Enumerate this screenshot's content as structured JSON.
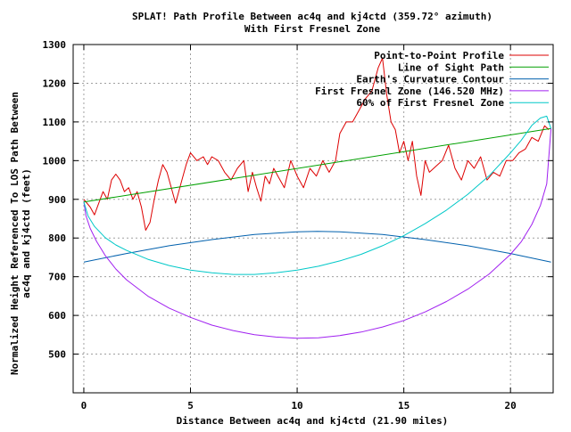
{
  "chart_data": {
    "type": "line",
    "title": "SPLAT! Path Profile Between ac4q and kj4ctd (359.72° azimuth)",
    "subtitle": "With First Fresnel Zone",
    "xlabel": "Distance Between ac4q and kj4ctd (21.90 miles)",
    "ylabel_lines": [
      "Normalized Height Referenced To LOS Path Between",
      "ac4q and kj4ctd (feet)"
    ],
    "xlim": [
      -0.5,
      22
    ],
    "ylim": [
      400,
      1300
    ],
    "x_ticks": [
      "0",
      "5",
      "10",
      "15",
      "20"
    ],
    "y_ticks": [
      "500",
      "600",
      "700",
      "800",
      "900",
      "1000",
      "1100",
      "1200",
      "1300"
    ],
    "grid": true,
    "legend_position": "top-right",
    "series": [
      {
        "name": "Point-to-Point Profile",
        "color": "#dd0000",
        "x": [
          0,
          0.3,
          0.5,
          0.7,
          0.9,
          1.1,
          1.3,
          1.5,
          1.7,
          1.9,
          2.1,
          2.3,
          2.5,
          2.7,
          2.9,
          3.1,
          3.3,
          3.5,
          3.7,
          3.9,
          4.1,
          4.3,
          4.6,
          4.8,
          5.0,
          5.3,
          5.6,
          5.8,
          6.0,
          6.3,
          6.6,
          6.9,
          7.2,
          7.5,
          7.7,
          7.9,
          8.1,
          8.3,
          8.5,
          8.7,
          8.9,
          9.1,
          9.4,
          9.7,
          10.0,
          10.3,
          10.6,
          10.9,
          11.2,
          11.5,
          11.8,
          12.0,
          12.3,
          12.6,
          12.9,
          13.2,
          13.5,
          13.8,
          14.0,
          14.2,
          14.4,
          14.6,
          14.8,
          15.0,
          15.2,
          15.4,
          15.6,
          15.8,
          16.0,
          16.2,
          16.5,
          16.8,
          17.1,
          17.4,
          17.7,
          18.0,
          18.3,
          18.6,
          18.9,
          19.2,
          19.5,
          19.8,
          20.1,
          20.4,
          20.7,
          21.0,
          21.3,
          21.6,
          21.8
        ],
        "y": [
          900,
          880,
          860,
          890,
          920,
          900,
          950,
          965,
          950,
          920,
          930,
          900,
          920,
          880,
          820,
          840,
          900,
          950,
          990,
          970,
          930,
          890,
          950,
          990,
          1020,
          1000,
          1010,
          990,
          1010,
          1000,
          970,
          950,
          980,
          1000,
          920,
          970,
          930,
          895,
          960,
          940,
          980,
          960,
          930,
          1000,
          960,
          930,
          980,
          960,
          1000,
          970,
          1000,
          1070,
          1100,
          1100,
          1130,
          1160,
          1180,
          1240,
          1265,
          1170,
          1100,
          1080,
          1020,
          1050,
          1000,
          1050,
          960,
          910,
          1000,
          970,
          985,
          1000,
          1040,
          980,
          950,
          1000,
          980,
          1010,
          950,
          970,
          960,
          1000,
          1000,
          1020,
          1030,
          1060,
          1050,
          1090,
          1080
        ]
      },
      {
        "name": "Line of Sight Path",
        "color": "#00a000",
        "x": [
          0,
          21.9
        ],
        "y": [
          893,
          1083
        ]
      },
      {
        "name": "Earth's Curvature Contour",
        "color": "#0060ad",
        "x": [
          0,
          2,
          4,
          6,
          8,
          10,
          10.95,
          12,
          14,
          16,
          18,
          20,
          21.9
        ],
        "y": [
          738,
          760,
          780,
          796,
          809,
          816,
          817,
          816,
          809,
          796,
          780,
          760,
          738
        ]
      },
      {
        "name": "First Fresnel Zone (146.520 MHz)",
        "color": "#a020f0",
        "x": [
          0,
          0.1,
          0.3,
          0.6,
          1,
          1.5,
          2,
          3,
          4,
          5,
          6,
          7,
          8,
          9,
          10,
          11,
          12,
          13,
          14,
          15,
          16,
          17,
          18,
          19,
          20,
          20.5,
          21,
          21.4,
          21.7,
          21.9
        ],
        "y": [
          893,
          858,
          825,
          791,
          755,
          720,
          692,
          650,
          619,
          595,
          575,
          561,
          550,
          544,
          541,
          542,
          548,
          557,
          570,
          587,
          609,
          636,
          668,
          707,
          758,
          790,
          835,
          884,
          940,
          1083
        ]
      },
      {
        "name": "60% of First Fresnel Zone",
        "color": "#00c8c8",
        "x": [
          0,
          0.2,
          0.5,
          1,
          1.5,
          2,
          3,
          4,
          5,
          6,
          7,
          8,
          9,
          10,
          11,
          12,
          13,
          14,
          15,
          16,
          17,
          18,
          19,
          20,
          20.5,
          21,
          21.4,
          21.7,
          21.9
        ],
        "y": [
          893,
          857,
          830,
          801,
          782,
          768,
          745,
          729,
          717,
          710,
          706,
          706,
          710,
          717,
          727,
          741,
          758,
          780,
          806,
          837,
          872,
          913,
          961,
          1020,
          1052,
          1091,
          1110,
          1115,
          1083
        ]
      }
    ]
  }
}
